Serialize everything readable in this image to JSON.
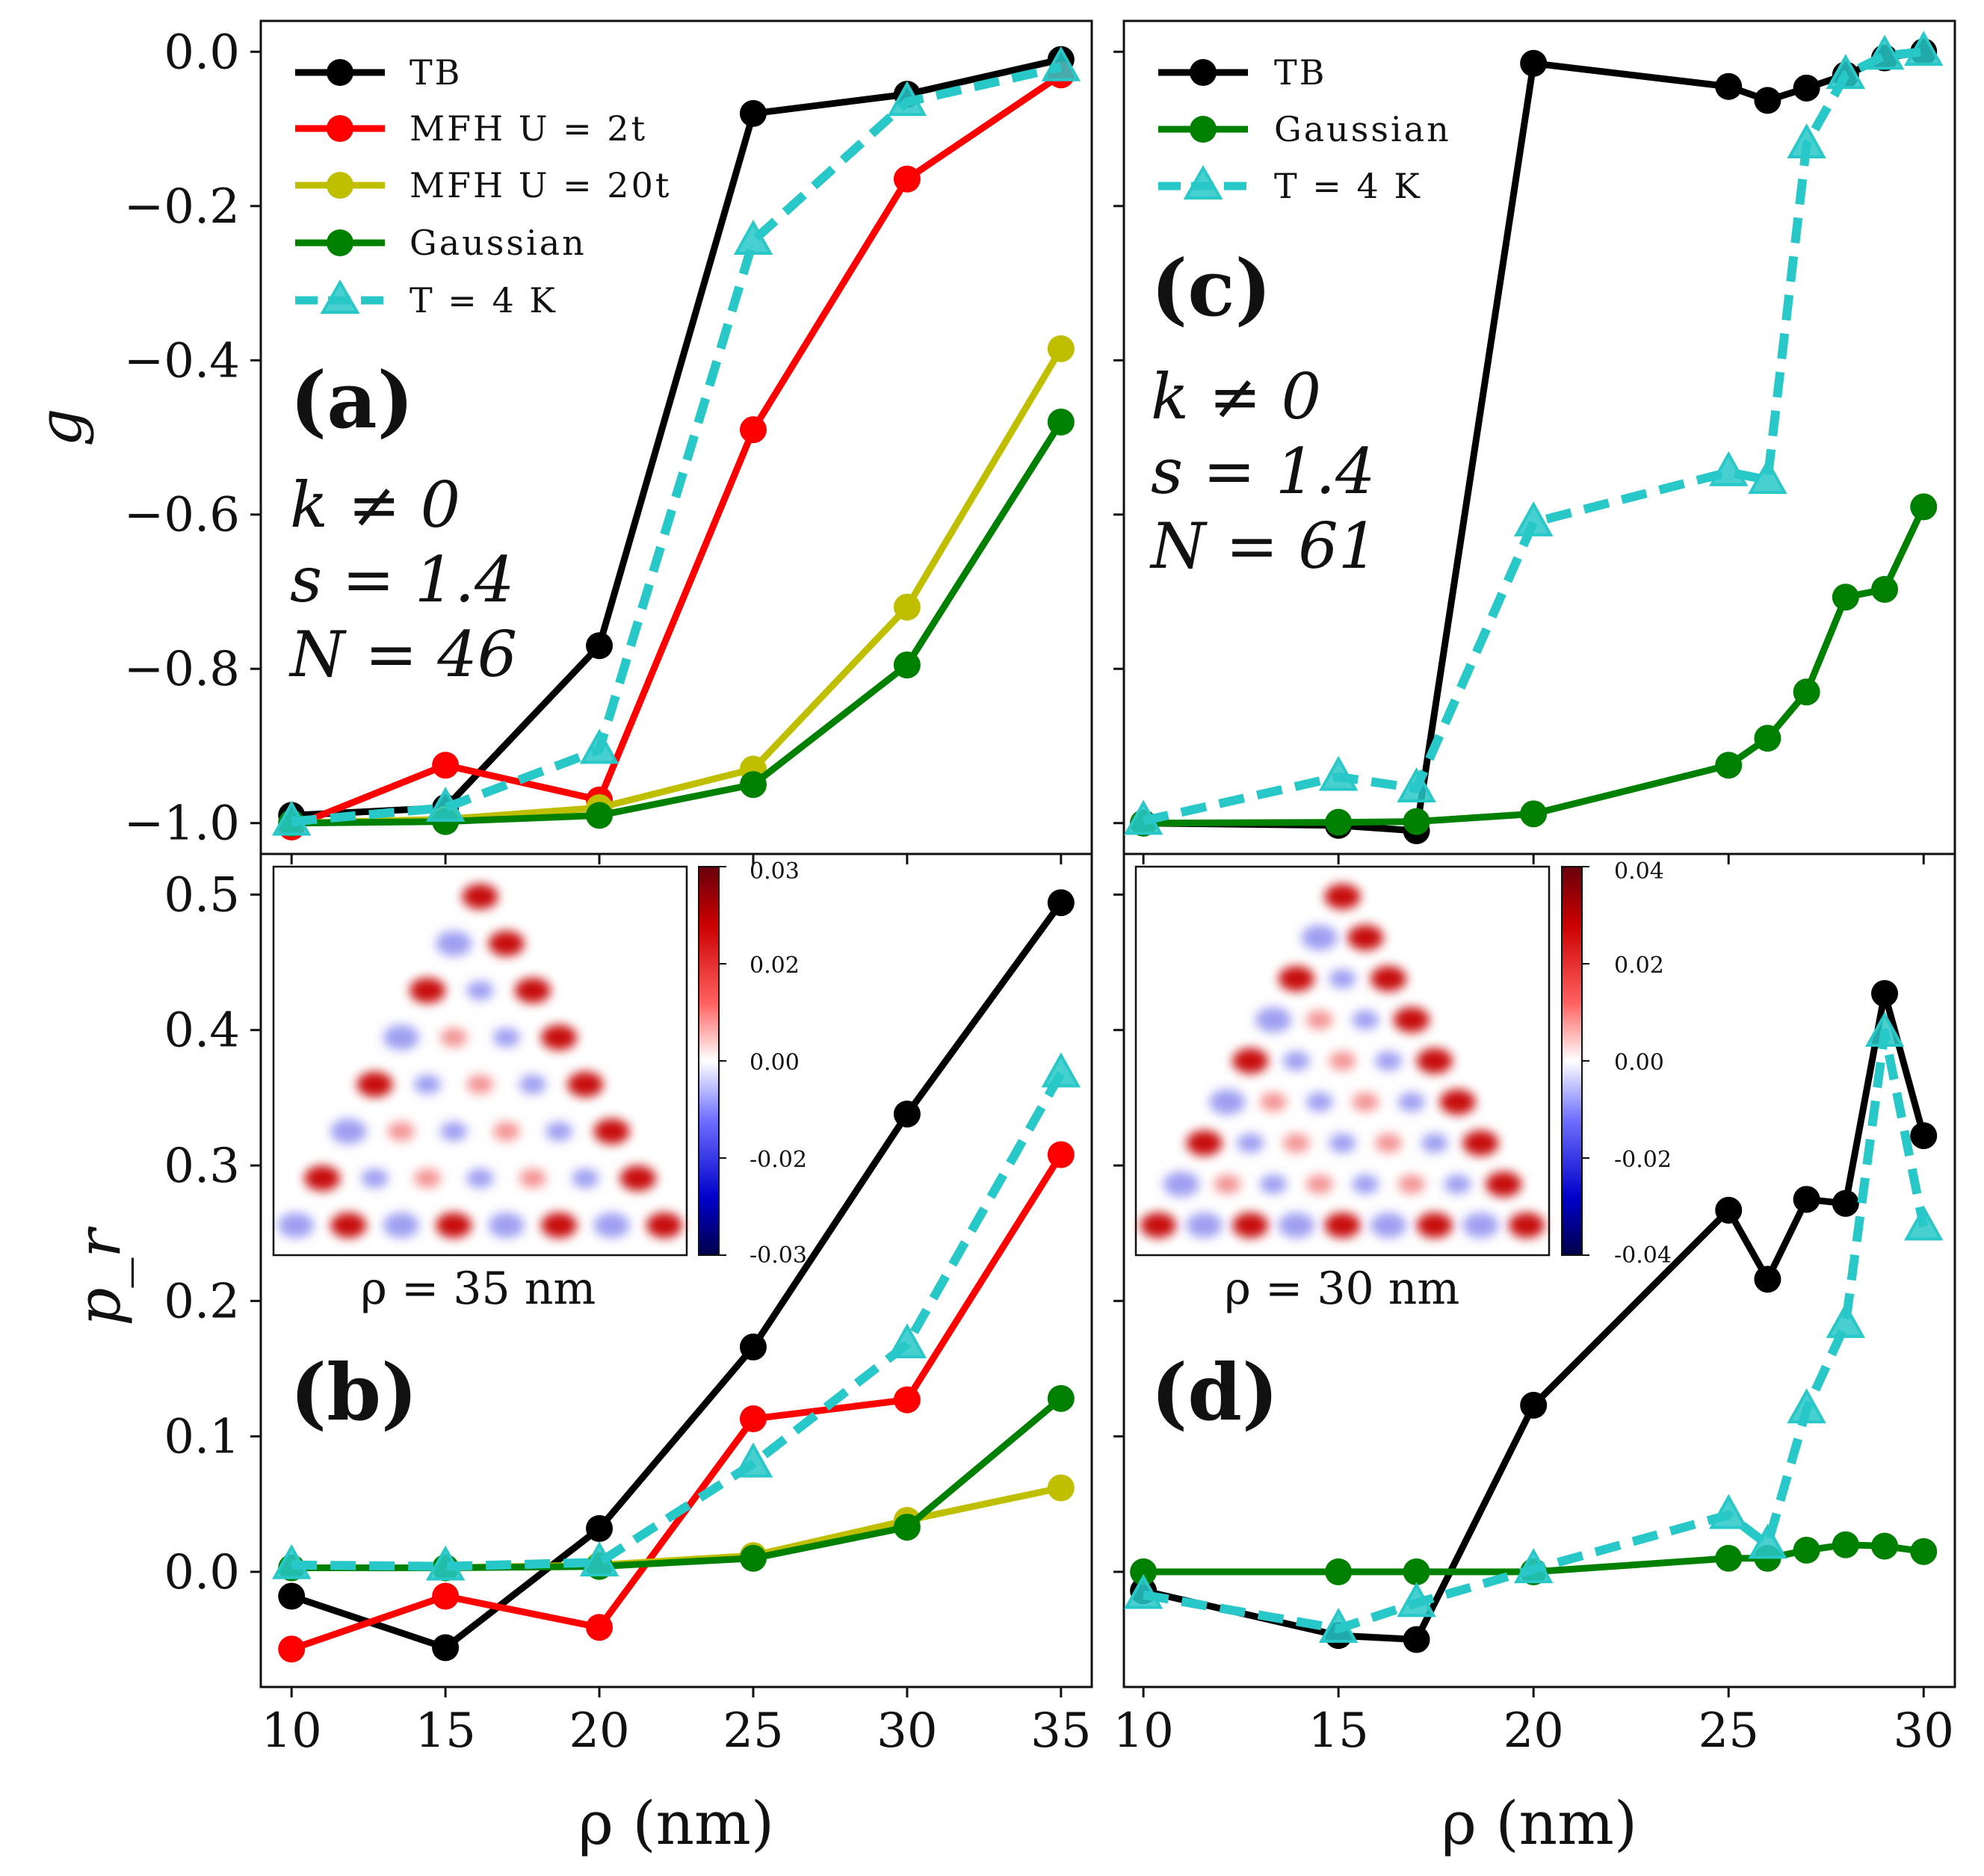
{
  "chart_data": [
    {
      "panel": "a",
      "type": "line",
      "ylabel": "g",
      "xlim": [
        9,
        36
      ],
      "ylim": [
        -1.04,
        0.04
      ],
      "yticks": [
        "0.0",
        "−0.2",
        "−0.4",
        "−0.6",
        "−0.8",
        "−1.0"
      ],
      "panel_letter": "(a)",
      "params": [
        "k ≠ 0",
        "s = 1.4",
        "N = 46"
      ],
      "legend": [
        "TB",
        "MFH U = 2t",
        "MFH U = 20t",
        "Gaussian",
        "T = 4 K"
      ],
      "series": [
        {
          "name": "TB",
          "color": "#000000",
          "style": "solid",
          "marker": "circle",
          "x": [
            10,
            15,
            20,
            25,
            30,
            35
          ],
          "y": [
            -0.99,
            -0.98,
            -0.77,
            -0.08,
            -0.055,
            -0.01
          ]
        },
        {
          "name": "MFH U = 2t",
          "color": "#ff0000",
          "style": "solid",
          "marker": "circle",
          "x": [
            10,
            15,
            20,
            25,
            30,
            35
          ],
          "y": [
            -1.005,
            -0.925,
            -0.97,
            -0.49,
            -0.165,
            -0.03
          ]
        },
        {
          "name": "MFH U = 20t",
          "color": "#bfbf00",
          "style": "solid",
          "marker": "circle",
          "x": [
            10,
            15,
            20,
            25,
            30,
            35
          ],
          "y": [
            -1.0,
            -0.995,
            -0.98,
            -0.93,
            -0.72,
            -0.385
          ]
        },
        {
          "name": "Gaussian",
          "color": "#008000",
          "style": "solid",
          "marker": "circle",
          "x": [
            10,
            15,
            20,
            25,
            30,
            35
          ],
          "y": [
            -1.0,
            -0.998,
            -0.99,
            -0.95,
            -0.795,
            -0.48
          ]
        },
        {
          "name": "T = 4 K",
          "color": "#28c8c8",
          "style": "dashed",
          "marker": "triangle",
          "x": [
            10,
            15,
            20,
            25,
            30,
            35
          ],
          "y": [
            -0.998,
            -0.98,
            -0.905,
            -0.245,
            -0.065,
            -0.02
          ]
        }
      ]
    },
    {
      "panel": "b",
      "type": "line",
      "ylabel": "p_r",
      "xlabel": "ρ (nm)",
      "xlim": [
        9,
        36
      ],
      "ylim": [
        -0.085,
        0.53
      ],
      "xticks": [
        "10",
        "15",
        "20",
        "25",
        "30",
        "35"
      ],
      "yticks": [
        "0.5",
        "0.4",
        "0.3",
        "0.2",
        "0.1",
        "0.0"
      ],
      "panel_letter": "(b)",
      "inset_caption": "ρ = 35 nm",
      "colorbar_ticks": [
        "0.03",
        "0.02",
        "0.00",
        "-0.02",
        "-0.03"
      ],
      "series": [
        {
          "name": "TB",
          "color": "#000000",
          "style": "solid",
          "marker": "circle",
          "x": [
            10,
            15,
            20,
            25,
            30,
            35
          ],
          "y": [
            -0.018,
            -0.056,
            0.032,
            0.166,
            0.338,
            0.494
          ]
        },
        {
          "name": "MFH U = 2t",
          "color": "#ff0000",
          "style": "solid",
          "marker": "circle",
          "x": [
            10,
            15,
            20,
            25,
            30,
            35
          ],
          "y": [
            -0.057,
            -0.018,
            -0.041,
            0.113,
            0.127,
            0.308
          ]
        },
        {
          "name": "MFH U = 20t",
          "color": "#bfbf00",
          "style": "solid",
          "marker": "circle",
          "x": [
            10,
            15,
            20,
            25,
            30,
            35
          ],
          "y": [
            0.003,
            0.003,
            0.005,
            0.012,
            0.038,
            0.062
          ]
        },
        {
          "name": "Gaussian",
          "color": "#008000",
          "style": "solid",
          "marker": "circle",
          "x": [
            10,
            15,
            20,
            25,
            30,
            35
          ],
          "y": [
            0.003,
            0.003,
            0.004,
            0.01,
            0.033,
            0.128
          ]
        },
        {
          "name": "T = 4 K",
          "color": "#28c8c8",
          "style": "dashed",
          "marker": "triangle",
          "x": [
            10,
            15,
            20,
            25,
            30,
            35
          ],
          "y": [
            0.005,
            0.004,
            0.007,
            0.08,
            0.168,
            0.368
          ]
        }
      ]
    },
    {
      "panel": "c",
      "type": "line",
      "xlim": [
        9.5,
        30.8
      ],
      "ylim": [
        -1.04,
        0.04
      ],
      "panel_letter": "(c)",
      "params": [
        "k ≠ 0",
        "s = 1.4",
        "N = 61"
      ],
      "legend": [
        "TB",
        "Gaussian",
        "T = 4 K"
      ],
      "series": [
        {
          "name": "TB",
          "color": "#000000",
          "style": "solid",
          "marker": "circle",
          "x": [
            10,
            15,
            17,
            20,
            25,
            26,
            27,
            28,
            29,
            30
          ],
          "y": [
            -1.0,
            -1.003,
            -1.01,
            -0.015,
            -0.045,
            -0.063,
            -0.047,
            -0.03,
            -0.008,
            0.0
          ]
        },
        {
          "name": "Gaussian",
          "color": "#008000",
          "style": "solid",
          "marker": "circle",
          "x": [
            10,
            15,
            17,
            20,
            25,
            26,
            27,
            28,
            29,
            30
          ],
          "y": [
            -1.0,
            -0.999,
            -0.998,
            -0.988,
            -0.925,
            -0.89,
            -0.83,
            -0.707,
            -0.697,
            -0.59
          ]
        },
        {
          "name": "T = 4 K",
          "color": "#28c8c8",
          "style": "dashed",
          "marker": "triangle",
          "x": [
            10,
            15,
            17,
            20,
            25,
            26,
            27,
            28,
            29,
            30
          ],
          "y": [
            -0.997,
            -0.94,
            -0.955,
            -0.61,
            -0.545,
            -0.555,
            -0.12,
            -0.03,
            -0.005,
            0.0
          ]
        }
      ]
    },
    {
      "panel": "d",
      "type": "line",
      "xlabel": "ρ (nm)",
      "xlim": [
        9.5,
        30.8
      ],
      "ylim": [
        -0.085,
        0.53
      ],
      "xticks": [
        "10",
        "15",
        "20",
        "25",
        "30"
      ],
      "panel_letter": "(d)",
      "inset_caption": "ρ = 30 nm",
      "colorbar_ticks": [
        "0.04",
        "0.02",
        "0.00",
        "-0.02",
        "-0.04"
      ],
      "series": [
        {
          "name": "TB",
          "color": "#000000",
          "style": "solid",
          "marker": "circle",
          "x": [
            10,
            15,
            17,
            20,
            25,
            26,
            27,
            28,
            29,
            30
          ],
          "y": [
            -0.014,
            -0.047,
            -0.05,
            0.123,
            0.267,
            0.216,
            0.275,
            0.272,
            0.427,
            0.322
          ]
        },
        {
          "name": "Gaussian",
          "color": "#008000",
          "style": "solid",
          "marker": "circle",
          "x": [
            10,
            15,
            17,
            20,
            25,
            26,
            27,
            28,
            29,
            30
          ],
          "y": [
            0.0,
            0.0,
            0.0,
            0.0,
            0.01,
            0.01,
            0.016,
            0.02,
            0.019,
            0.015
          ]
        },
        {
          "name": "T = 4 K",
          "color": "#28c8c8",
          "style": "dashed",
          "marker": "triangle",
          "x": [
            10,
            15,
            17,
            20,
            25,
            26,
            27,
            28,
            29,
            30
          ],
          "y": [
            -0.017,
            -0.042,
            -0.023,
            0.002,
            0.042,
            0.02,
            0.12,
            0.183,
            0.398,
            0.255
          ]
        }
      ]
    }
  ]
}
